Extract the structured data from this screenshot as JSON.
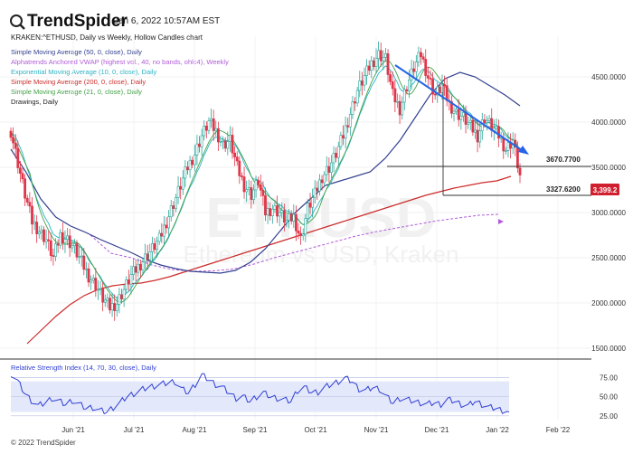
{
  "header": {
    "brand": "TrendSpider",
    "timestamp": "Jan 6, 2022 10:57AM EST",
    "symbol_line": "KRAKEN:^ETHUSD, Daily vs Weekly, Hollow Candles chart"
  },
  "legend": [
    {
      "text": "Simple Moving Average (50, 0, close), Daily",
      "color": "#33408f"
    },
    {
      "text": "Alphatrends Anchored VWAP (highest vol., 40, no bands, ohlc4), Weekly",
      "color": "#b05cd8"
    },
    {
      "text": "Exponential Moving Average (10, 0, close), Daily",
      "color": "#2bb3c4"
    },
    {
      "text": "Simple Moving Average (200, 0, close), Daily",
      "color": "#cc2b2b"
    },
    {
      "text": "Simple Moving Average (21, 0, close), Daily",
      "color": "#43a047"
    },
    {
      "text": "Drawings, Daily",
      "color": "#222222"
    }
  ],
  "watermark": {
    "ticker": "ETHUSD",
    "name": "Ethereum vs USD, Kraken"
  },
  "footer": "© 2022 TrendSpider",
  "colors": {
    "up": "#26a69a",
    "down": "#e0364a",
    "trendline": "#2563eb",
    "rsi_line": "#2f3fd3",
    "rsi_band": "#e4e8fb"
  },
  "chart_data": {
    "type": "candlestick",
    "x_ticks": [
      "Jun '21",
      "Jul '21",
      "Aug '21",
      "Sep '21",
      "Oct '21",
      "Nov '21",
      "Dec '21",
      "Jan '22",
      "Feb '22"
    ],
    "y_ticks": [
      "4500.0000",
      "4000.0000",
      "3500.0000",
      "3000.0000",
      "2500.0000",
      "2000.0000",
      "1500.0000"
    ],
    "y_range": [
      1380,
      4950
    ],
    "price_levels": [
      {
        "label": "3670.7700",
        "value": 3670.77
      },
      {
        "label": "3327.6200",
        "value": 3327.62
      }
    ],
    "current_price": {
      "label": "3,399.2",
      "value": 3399.2
    },
    "closes": [
      3900,
      3550,
      3200,
      2900,
      2800,
      2700,
      2500,
      2750,
      2700,
      2600,
      2450,
      2300,
      2200,
      2050,
      1950,
      2000,
      2150,
      2300,
      2400,
      2500,
      2600,
      2700,
      2900,
      3100,
      3300,
      3500,
      3650,
      3850,
      4000,
      3900,
      3750,
      3800,
      3500,
      3300,
      3200,
      3350,
      3000,
      3050,
      3000,
      2900,
      2950,
      2700,
      3050,
      3200,
      3400,
      3500,
      3650,
      3850,
      4100,
      4350,
      4500,
      4650,
      4750,
      4700,
      4300,
      4150,
      4400,
      4600,
      4750,
      4500,
      4300,
      4400,
      4200,
      4100,
      4050,
      3950,
      3850,
      4050,
      3950,
      3850,
      3700,
      3800,
      3400
    ],
    "sma200": [
      1550,
      1700,
      1850,
      1980,
      2080,
      2150,
      2190,
      2210,
      2220,
      2250,
      2290,
      2340,
      2390,
      2440,
      2490,
      2540,
      2590,
      2640,
      2690,
      2740,
      2790,
      2840,
      2890,
      2940,
      2990,
      3040,
      3090,
      3140,
      3190,
      3230,
      3270,
      3300,
      3330,
      3350,
      3400
    ],
    "sma50": [
      3700,
      3450,
      3150,
      2950,
      2850,
      2780,
      2700,
      2630,
      2560,
      2480,
      2420,
      2380,
      2350,
      2340,
      2330,
      2360,
      2450,
      2600,
      2800,
      3000,
      3150,
      3300,
      3350,
      3400,
      3450,
      3600,
      3800,
      4050,
      4300,
      4480,
      4550,
      4500,
      4400,
      4300,
      4180
    ],
    "vwap": [
      2750,
      2550,
      2500,
      2420,
      2370,
      2350,
      2355,
      2375,
      2430,
      2500,
      2560,
      2620,
      2680,
      2740,
      2790,
      2830,
      2870,
      2910,
      2940,
      2970,
      2980
    ],
    "rsi": {
      "label": "Relative Strength Index (14, 70, 30, close), Daily",
      "y_ticks": [
        "75.00",
        "50.00",
        "25.00"
      ],
      "y_range": [
        20,
        85
      ],
      "band": [
        30,
        70
      ],
      "values": [
        80,
        70,
        55,
        45,
        38,
        42,
        48,
        44,
        40,
        45,
        40,
        35,
        36,
        32,
        30,
        36,
        42,
        50,
        54,
        58,
        62,
        64,
        66,
        68,
        70,
        60,
        55,
        66,
        78,
        72,
        66,
        62,
        55,
        48,
        50,
        44,
        50,
        55,
        50,
        48,
        46,
        44,
        58,
        62,
        56,
        56,
        62,
        66,
        70,
        74,
        70,
        60,
        58,
        62,
        60,
        50,
        42,
        48,
        46,
        44,
        42,
        40,
        42,
        40,
        46,
        44,
        40,
        38,
        44,
        40,
        36,
        35,
        32,
        30
      ]
    }
  }
}
